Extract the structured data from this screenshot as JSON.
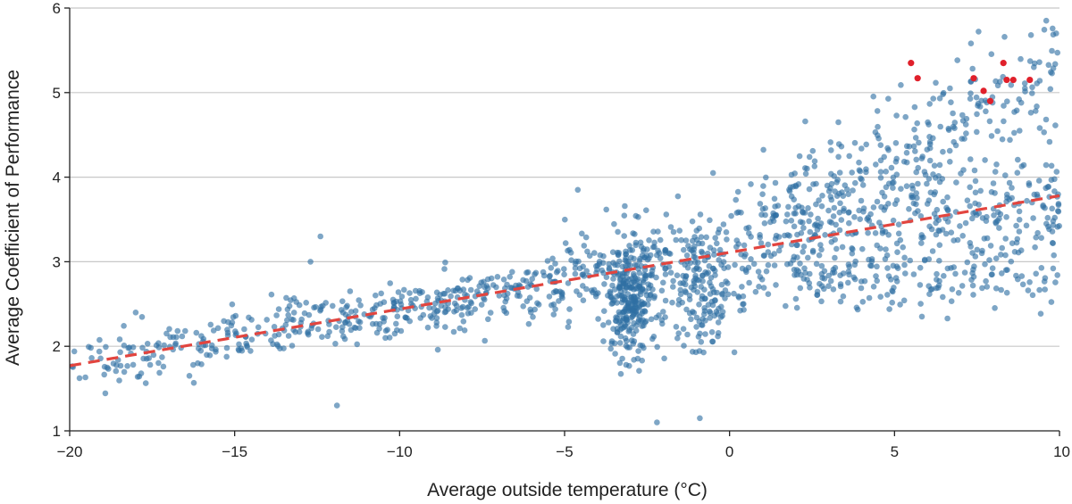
{
  "chart_data": {
    "type": "scatter",
    "title": "",
    "xlabel": "Average outside temperature (°C)",
    "ylabel": "Average Coefficient of Performance",
    "xlim": [
      -20,
      10
    ],
    "ylim": [
      1,
      6
    ],
    "xticks": [
      -20,
      -15,
      -10,
      -5,
      0,
      5,
      10
    ],
    "xtick_labels": [
      "−20",
      "−15",
      "−10",
      "−5",
      "0",
      "5",
      "10"
    ],
    "yticks": [
      1,
      2,
      3,
      4,
      5,
      6
    ],
    "ytick_labels": [
      "1",
      "2",
      "3",
      "4",
      "5",
      "6"
    ],
    "grid": "horizontal",
    "colors": {
      "points": "#2f6fa3",
      "highlight": "#e0202b",
      "trend": "#e2453f",
      "grid": "#c8c8c8"
    },
    "trend_line": {
      "name": "linear fit",
      "style": "dashed",
      "x": [
        -20,
        10
      ],
      "y": [
        1.77,
        3.78
      ]
    },
    "highlight_points": {
      "name": "highlighted",
      "x": [
        5.5,
        5.7,
        7.4,
        7.7,
        7.9,
        8.3,
        8.4,
        8.6,
        9.1
      ],
      "y": [
        5.35,
        5.17,
        5.17,
        5.02,
        4.9,
        5.35,
        5.15,
        5.15,
        5.15
      ]
    },
    "series": [
      {
        "name": "low-temperature band",
        "x": [
          -20,
          -15
        ],
        "y_fit_slope": 0.067,
        "y_fit_intercept": 3.11,
        "density": "sparse"
      },
      {
        "name": "observations",
        "point_count": 1650,
        "x_range": [
          -20,
          10
        ],
        "y_range": [
          1.1,
          5.9
        ]
      }
    ],
    "sample_points": [
      {
        "x": -18.0,
        "y": 2.4
      },
      {
        "x": -12.7,
        "y": 3.0
      },
      {
        "x": -12.4,
        "y": 3.3
      },
      {
        "x": -11.9,
        "y": 1.3
      },
      {
        "x": -4.6,
        "y": 3.85
      },
      {
        "x": -2.2,
        "y": 1.1
      },
      {
        "x": -0.5,
        "y": 4.05
      },
      {
        "x": -0.9,
        "y": 1.15
      },
      {
        "x": 9.6,
        "y": 5.85
      },
      {
        "x": 9.9,
        "y": 5.7
      },
      {
        "x": 3.3,
        "y": 4.65
      }
    ]
  }
}
